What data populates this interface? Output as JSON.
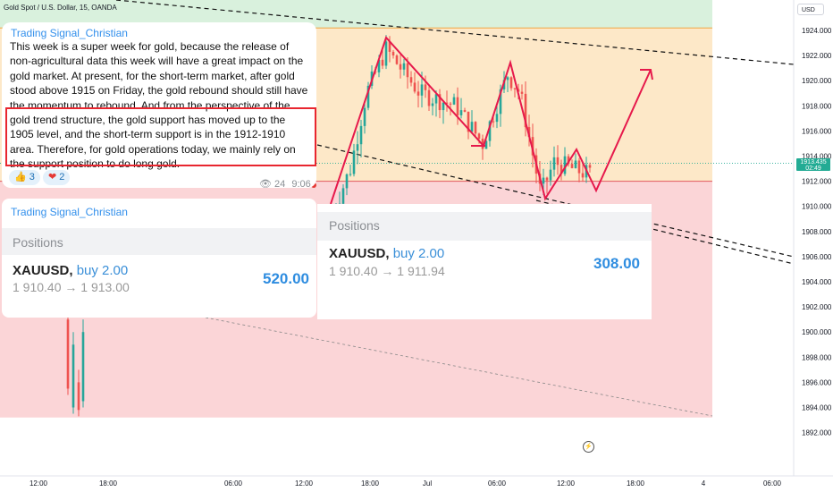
{
  "chart_data": {
    "type": "candlestick",
    "title": "Gold Spot / U.S. Dollar, 15, OANDA",
    "currency": "USD",
    "y_axis_ticks": [
      "1924.000",
      "1922.000",
      "1920.000",
      "1918.000",
      "1916.000",
      "1914.000",
      "1912.000",
      "1910.000",
      "1908.000",
      "1906.000",
      "1904.000",
      "1902.000",
      "1900.000",
      "1898.000",
      "1896.000",
      "1894.000",
      "1892.000"
    ],
    "x_axis_ticks": [
      "12:00",
      "18:00",
      "06:00",
      "12:00",
      "18:00",
      "Jul",
      "06:00",
      "12:00",
      "18:00",
      "4",
      "06:00"
    ],
    "current_price": "1913.435",
    "countdown": "02:49",
    "zones": [
      {
        "name": "green",
        "from": 1924.2,
        "to": 1927,
        "color": "#d9f1dd"
      },
      {
        "name": "orange",
        "from": 1912.0,
        "to": 1924.2,
        "color": "#fde8c8"
      },
      {
        "name": "red",
        "from": 1893.2,
        "to": 1912.0,
        "color": "#fbd5d7"
      }
    ],
    "candles_summary": {
      "low": 1893.3,
      "high": 1923.5
    }
  },
  "telegram": {
    "author": "Trading Signal_Christian",
    "message": "This week is a super week for gold, because the release of non-agricultural data this week will have a great impact on the gold market. At present, for the short-term market, after gold stood above 1915 on Friday, the gold rebound should still have the momentum to rebound. And from the perspective of the gold trend structure, the gold support has moved up to the 1905 level, and the short-term support is in the 1912-1910 area. Therefore, for gold operations today, we mainly rely on the support position to do long gold.",
    "reactions": [
      {
        "emoji": "👍",
        "count": "3"
      },
      {
        "emoji": "❤",
        "count": "2"
      }
    ],
    "views": "24",
    "time": "9:06"
  },
  "positions_card_1": {
    "author": "Trading Signal_Christian",
    "title": "Positions",
    "symbol": "XAUUSD,",
    "side": "buy 2.00",
    "range": "1 910.40 → 1 913.00",
    "pnl": "520.00"
  },
  "positions_card_2": {
    "title": "Positions",
    "symbol": "XAUUSD,",
    "side": "buy 2.00",
    "range": "1 910.40 → 1 911.94",
    "pnl": "308.00"
  }
}
